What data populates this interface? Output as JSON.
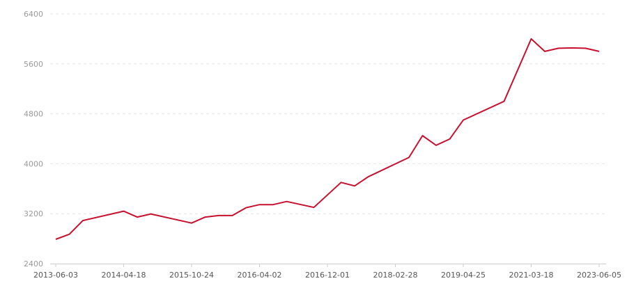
{
  "chart_data": {
    "type": "line",
    "title": "",
    "xlabel": "",
    "ylabel": "",
    "ylim": [
      2400,
      6400
    ],
    "y_ticks": [
      2400,
      3200,
      4000,
      4800,
      5600,
      6400
    ],
    "x_tick_labels": [
      "2013-06-03",
      "2014-04-18",
      "2015-10-24",
      "2016-04-02",
      "2016-12-01",
      "2018-02-28",
      "2019-04-25",
      "2021-03-18",
      "2023-06-05"
    ],
    "x_tick_every": 5,
    "grid": "horizontal dashed",
    "legend": "none",
    "series": [
      {
        "color": "#c8102e",
        "values": [
          2790,
          2870,
          3090,
          null,
          null,
          3240,
          3145,
          3195,
          null,
          null,
          3050,
          3145,
          3170,
          3170,
          3295,
          3345,
          3345,
          3395,
          null,
          3300,
          null,
          3700,
          3645,
          3790,
          null,
          null,
          4100,
          4450,
          4295,
          4395,
          4700,
          null,
          null,
          5000,
          null,
          6000,
          5800,
          5850,
          5855,
          5850,
          5800
        ]
      }
    ]
  }
}
